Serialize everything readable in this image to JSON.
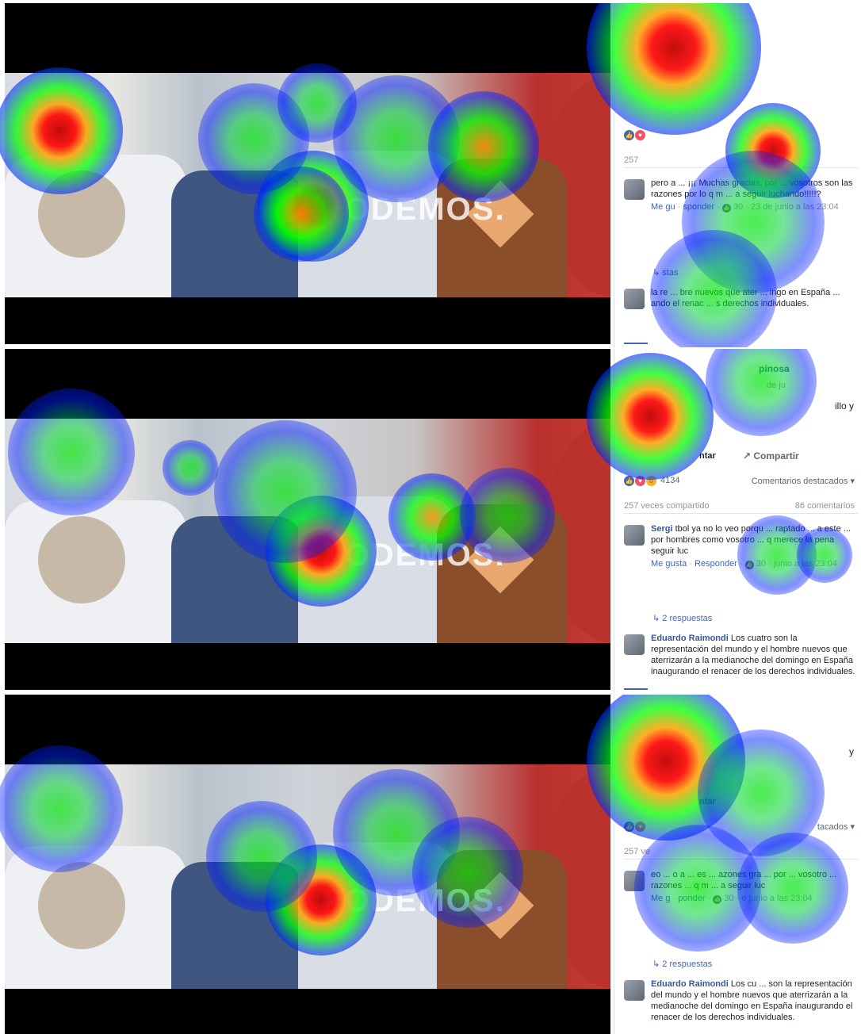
{
  "panels": [
    {
      "id": "panel-1",
      "video": {
        "logo": "PODEMOS."
      },
      "post": {
        "author": "",
        "date": "",
        "snippet": "",
        "actions": {
          "comment": "",
          "share": ""
        },
        "reactions": {
          "count": "",
          "sort": ""
        },
        "shares": {
          "left": "257",
          "right": ""
        },
        "comment1": {
          "name": "",
          "text": "pero a ... ¡¡¡ Muchas gracias, por ... vosotros son las razones por lo q m ... a seguir luchando!!!!!?",
          "meta_like": "Me gu",
          "meta_reply": "sponder",
          "meta_count": "30",
          "meta_date": "23 de junio a las 23:04"
        },
        "replies": "stas",
        "comment2": {
          "name": "",
          "text": "la re ... bre nuevos que ater ... ingo en España ... ando el renac ... s derechos individuales."
        }
      }
    },
    {
      "id": "panel-2",
      "video": {
        "logo": "PODEMOS."
      },
      "post": {
        "author": "pinosa",
        "date": "de ju",
        "snippet": "illo y",
        "actions": {
          "comment": "ntar",
          "share": "Compartir"
        },
        "reactions": {
          "count": "4134",
          "sort": "Comentarios destacados"
        },
        "shares": {
          "left": "257 veces compartido",
          "right": "86 comentarios"
        },
        "comment1": {
          "name": "Sergi",
          "text": "tbol ya no lo veo porqu ... raptado ... a este ... por hombres como vosotro ... q merece la pena seguir luc",
          "meta_like": "Me gusta",
          "meta_reply": "Responder",
          "meta_count": "30",
          "meta_date": "junio a las 23:04"
        },
        "replies": "2 respuestas",
        "comment2": {
          "name": "Eduardo Raimondi",
          "text": "Los cuatro son la representación del mundo y el hombre nuevos que aterrizarán a la medianoche del domingo en España inaugurando el renacer de los derechos individuales."
        }
      }
    },
    {
      "id": "panel-3",
      "video": {
        "logo": "PODEMOS."
      },
      "post": {
        "author": "",
        "date": "",
        "snippet": "y",
        "actions": {
          "comment": "ntar",
          "share": ""
        },
        "reactions": {
          "count": "",
          "sort": "tacados"
        },
        "shares": {
          "left": "257 ve",
          "right": ""
        },
        "comment1": {
          "name": "",
          "text": "eo ... o a ... es ... azones gra ... por ... vosotro ... razones ... q m ... a seguir luc",
          "meta_like": "Me g",
          "meta_reply": "ponder",
          "meta_count": "30",
          "meta_date": "e junio a las 23:04"
        },
        "replies": "2 respuestas",
        "comment2": {
          "name": "Eduardo Raimondi",
          "text": "Los cu ... son la representación del mundo y el hombre nuevos que aterrizarán a la medianoche del domingo en España inaugurando el renacer de los derechos individuales."
        }
      }
    }
  ],
  "colors": {
    "heat_low": "#1a1aff",
    "heat_mid": "#00ff00",
    "heat_high": "#ff0000",
    "fb_blue": "#4267b2"
  }
}
